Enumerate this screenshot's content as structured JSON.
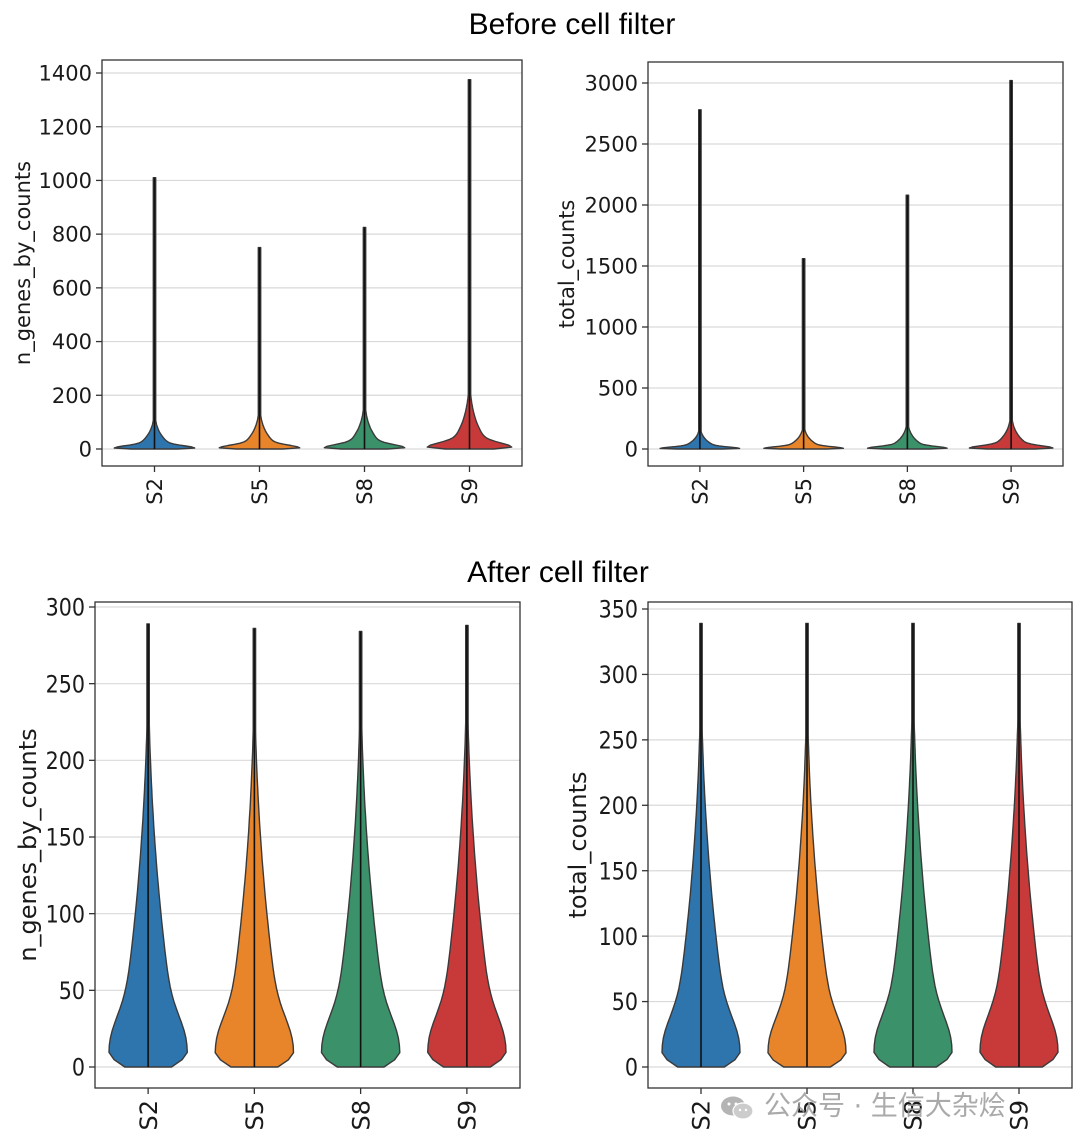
{
  "sections": {
    "before_title": "Before cell filter",
    "after_title": "After cell filter"
  },
  "colors": {
    "S2": "#2f75ad",
    "S5": "#e8842a",
    "S8": "#3a916a",
    "S9": "#c83a3a",
    "grid": "#d9d9d9",
    "outline": "#3a3a3a"
  },
  "watermark": {
    "icon": "wechat-icon",
    "text": "公众号 · 生信大杂烩"
  },
  "chart_data": [
    {
      "type": "violin",
      "panel": "before-n-genes",
      "title": "",
      "xlabel": "",
      "ylabel": "n_genes_by_counts",
      "categories": [
        "S2",
        "S5",
        "S8",
        "S9"
      ],
      "ylim": [
        0,
        1400
      ],
      "yticks": [
        0,
        200,
        400,
        600,
        800,
        1000,
        1200,
        1400
      ],
      "grid": true,
      "series": [
        {
          "category": "S2",
          "max": 1010,
          "body_top": 220,
          "max_width": 0.4
        },
        {
          "category": "S5",
          "max": 750,
          "body_top": 260,
          "max_width": 0.4
        },
        {
          "category": "S8",
          "max": 825,
          "body_top": 300,
          "max_width": 0.4
        },
        {
          "category": "S9",
          "max": 1375,
          "body_top": 420,
          "max_width": 0.42
        }
      ]
    },
    {
      "type": "violin",
      "panel": "before-total-counts",
      "title": "",
      "xlabel": "",
      "ylabel": "total_counts",
      "categories": [
        "S2",
        "S5",
        "S8",
        "S9"
      ],
      "ylim": [
        0,
        3000
      ],
      "yticks": [
        0,
        500,
        1000,
        1500,
        2000,
        2500,
        3000
      ],
      "grid": true,
      "series": [
        {
          "category": "S2",
          "max": 2780,
          "body_top": 300,
          "max_width": 0.4
        },
        {
          "category": "S5",
          "max": 1560,
          "body_top": 330,
          "max_width": 0.4
        },
        {
          "category": "S8",
          "max": 2080,
          "body_top": 380,
          "max_width": 0.4
        },
        {
          "category": "S9",
          "max": 3020,
          "body_top": 480,
          "max_width": 0.42
        }
      ]
    },
    {
      "type": "violin",
      "panel": "after-n-genes",
      "title": "",
      "xlabel": "",
      "ylabel": "n_genes_by_counts",
      "categories": [
        "S2",
        "S5",
        "S8",
        "S9"
      ],
      "ylim": [
        0,
        300
      ],
      "yticks": [
        0,
        50,
        100,
        150,
        200,
        250,
        300
      ],
      "grid": true,
      "series": [
        {
          "category": "S2",
          "max": 289,
          "body_top": 285,
          "max_width": 0.4
        },
        {
          "category": "S5",
          "max": 286,
          "body_top": 280,
          "max_width": 0.4
        },
        {
          "category": "S8",
          "max": 284,
          "body_top": 282,
          "max_width": 0.4
        },
        {
          "category": "S9",
          "max": 288,
          "body_top": 287,
          "max_width": 0.4
        }
      ]
    },
    {
      "type": "violin",
      "panel": "after-total-counts",
      "title": "",
      "xlabel": "",
      "ylabel": "total_counts",
      "categories": [
        "S2",
        "S5",
        "S8",
        "S9"
      ],
      "ylim": [
        0,
        350
      ],
      "yticks": [
        0,
        50,
        100,
        150,
        200,
        250,
        300,
        350
      ],
      "grid": true,
      "series": [
        {
          "category": "S2",
          "max": 339,
          "body_top": 330,
          "max_width": 0.4
        },
        {
          "category": "S5",
          "max": 339,
          "body_top": 325,
          "max_width": 0.4
        },
        {
          "category": "S8",
          "max": 339,
          "body_top": 338,
          "max_width": 0.4
        },
        {
          "category": "S9",
          "max": 339,
          "body_top": 339,
          "max_width": 0.4
        }
      ]
    }
  ]
}
